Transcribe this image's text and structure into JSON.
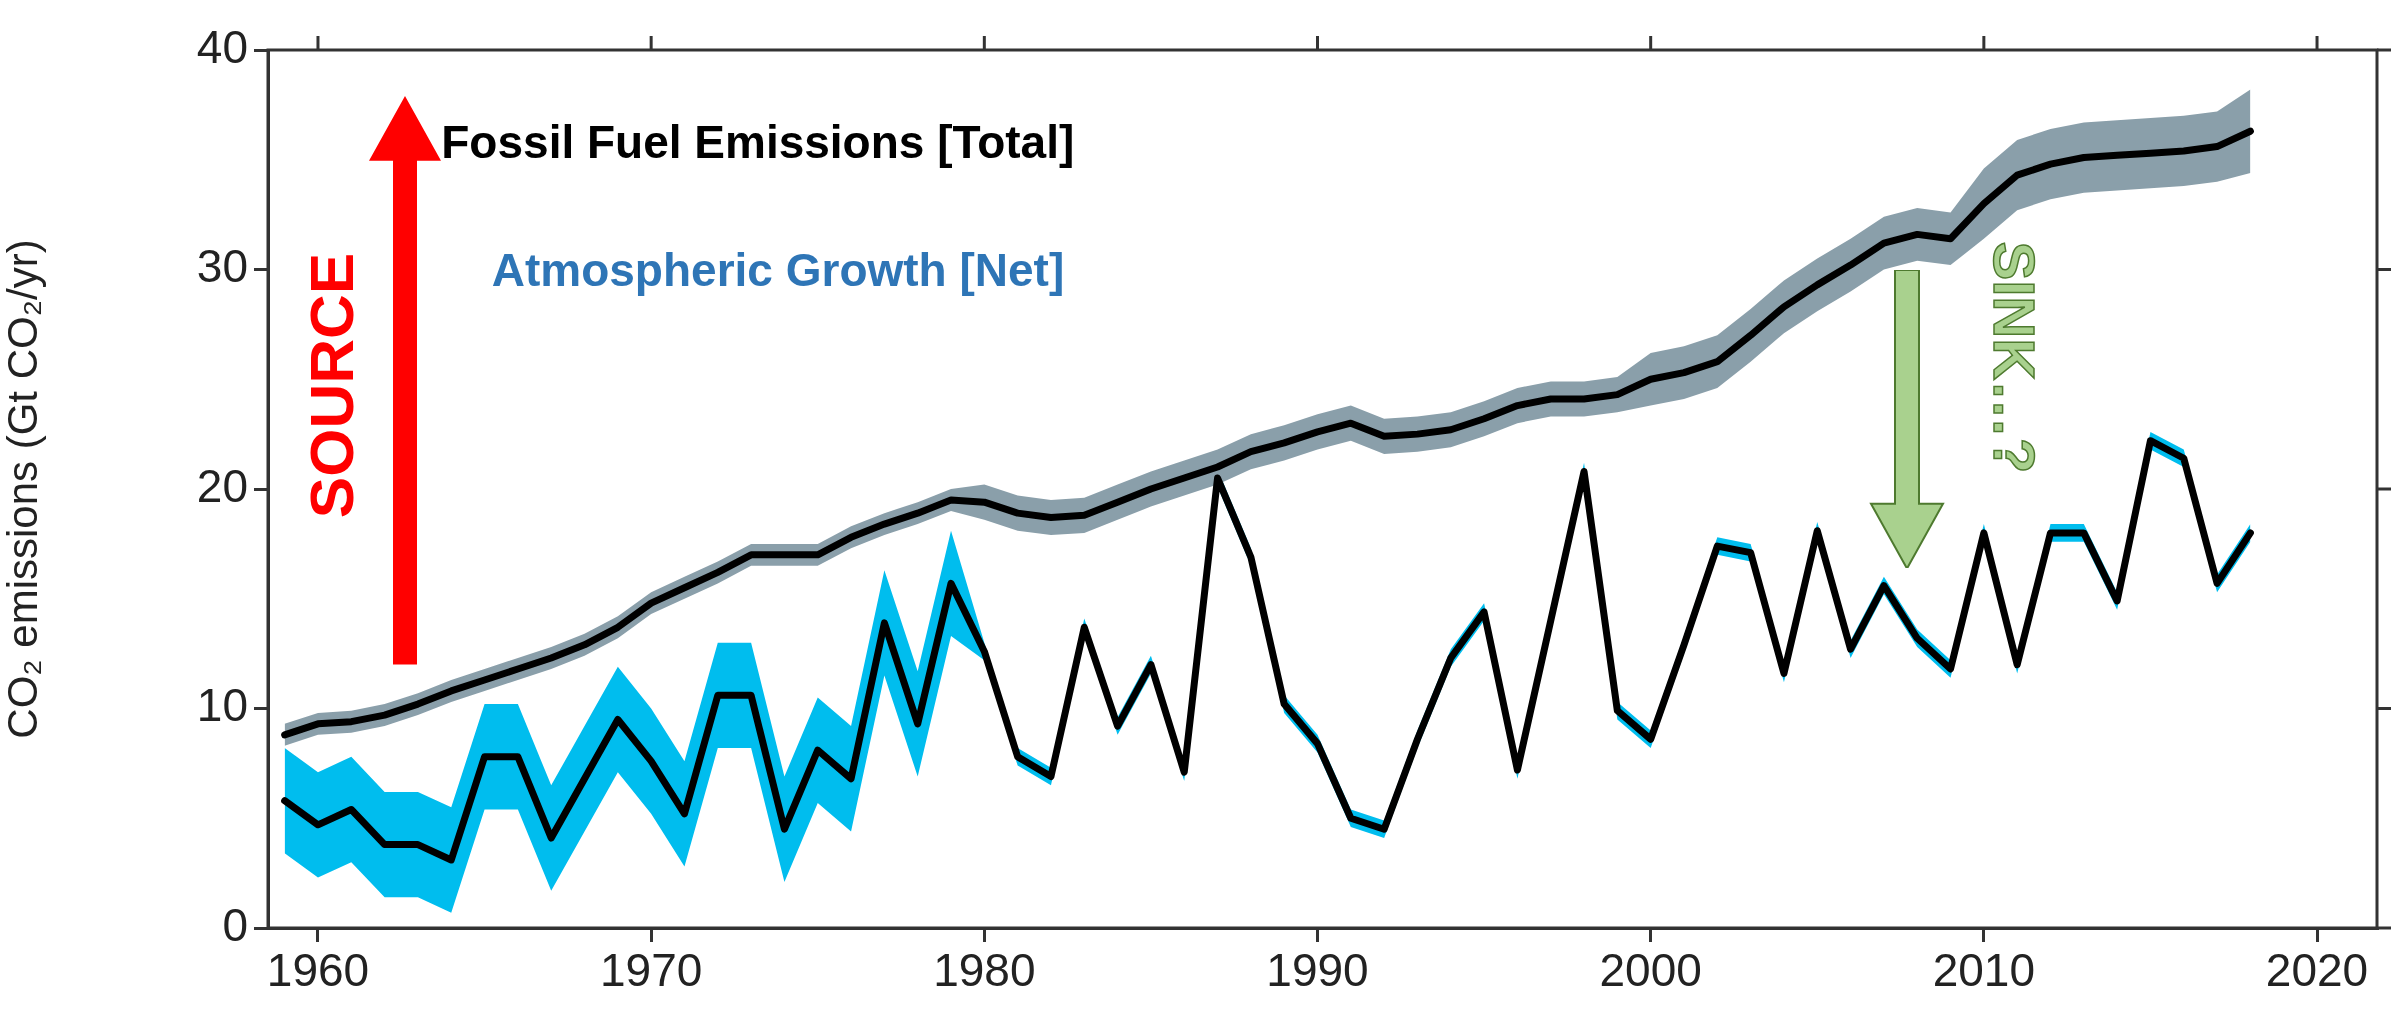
{
  "chart_data": {
    "type": "line",
    "ylabel": "CO₂ emissions (Gt CO₂/yr)",
    "x": [
      1959,
      1960,
      1961,
      1962,
      1963,
      1964,
      1965,
      1966,
      1967,
      1968,
      1969,
      1970,
      1971,
      1972,
      1973,
      1974,
      1975,
      1976,
      1977,
      1978,
      1979,
      1980,
      1981,
      1982,
      1983,
      1984,
      1985,
      1986,
      1987,
      1988,
      1989,
      1990,
      1991,
      1992,
      1993,
      1994,
      1995,
      1996,
      1997,
      1998,
      1999,
      2000,
      2001,
      2002,
      2003,
      2004,
      2005,
      2006,
      2007,
      2008,
      2009,
      2010,
      2011,
      2012,
      2013,
      2014,
      2015,
      2016,
      2017,
      2018
    ],
    "series": [
      {
        "color": "#000000",
        "values": [
          8.8,
          9.3,
          9.4,
          9.7,
          10.2,
          10.8,
          11.3,
          11.8,
          12.3,
          12.9,
          13.7,
          14.8,
          15.5,
          16.2,
          17.0,
          17.0,
          17.0,
          17.8,
          18.4,
          18.9,
          19.5,
          19.4,
          18.9,
          18.7,
          18.8,
          19.4,
          20.0,
          20.5,
          21.0,
          21.7,
          22.1,
          22.6,
          23.0,
          22.4,
          22.5,
          22.7,
          23.2,
          23.8,
          24.1,
          24.1,
          24.3,
          25.0,
          25.3,
          25.8,
          27.0,
          28.3,
          29.3,
          30.2,
          31.2,
          31.6,
          31.4,
          33.0,
          34.3,
          34.8,
          35.1,
          35.2,
          35.3,
          35.4,
          35.6,
          36.3
        ],
        "lower": [
          8.3,
          8.8,
          8.9,
          9.2,
          9.7,
          10.3,
          10.8,
          11.3,
          11.8,
          12.4,
          13.2,
          14.3,
          15.0,
          15.7,
          16.5,
          16.5,
          16.5,
          17.3,
          17.9,
          18.4,
          19.0,
          18.6,
          18.1,
          17.9,
          18.0,
          18.6,
          19.2,
          19.7,
          20.2,
          20.9,
          21.3,
          21.8,
          22.2,
          21.6,
          21.7,
          21.9,
          22.4,
          23.0,
          23.3,
          23.3,
          23.5,
          23.8,
          24.1,
          24.6,
          25.8,
          27.1,
          28.1,
          29.0,
          30.0,
          30.4,
          30.2,
          31.4,
          32.7,
          33.2,
          33.5,
          33.6,
          33.7,
          33.8,
          34.0,
          34.4
        ],
        "upper": [
          9.3,
          9.8,
          9.9,
          10.2,
          10.7,
          11.3,
          11.8,
          12.3,
          12.8,
          13.4,
          14.2,
          15.3,
          16.0,
          16.7,
          17.5,
          17.5,
          17.5,
          18.3,
          18.9,
          19.4,
          20.0,
          20.2,
          19.7,
          19.5,
          19.6,
          20.2,
          20.8,
          21.3,
          21.8,
          22.5,
          22.9,
          23.4,
          23.8,
          23.2,
          23.3,
          23.5,
          24.0,
          24.6,
          24.9,
          24.9,
          25.1,
          26.2,
          26.5,
          27.0,
          28.2,
          29.5,
          30.5,
          31.4,
          32.4,
          32.8,
          32.6,
          34.6,
          35.9,
          36.4,
          36.7,
          36.8,
          36.9,
          37.0,
          37.2,
          38.2
        ]
      },
      {
        "color": "#000000",
        "values": [
          5.8,
          4.7,
          5.4,
          3.8,
          3.8,
          3.1,
          7.8,
          7.8,
          4.1,
          6.8,
          9.5,
          7.6,
          5.2,
          10.6,
          10.6,
          4.5,
          8.1,
          6.8,
          13.9,
          9.3,
          15.7,
          12.6,
          7.8,
          6.9,
          13.7,
          9.2,
          12.0,
          7.1,
          20.5,
          16.9,
          10.2,
          8.4,
          5.0,
          4.5,
          8.6,
          12.3,
          14.4,
          7.2,
          14.0,
          20.8,
          9.9,
          8.6,
          12.9,
          17.4,
          17.1,
          11.6,
          18.1,
          12.7,
          15.6,
          13.2,
          11.8,
          18.0,
          12.0,
          18.0,
          18.0,
          14.9,
          22.2,
          21.4,
          15.7,
          18.0
        ],
        "lower": [
          3.4,
          2.3,
          3.0,
          1.4,
          1.4,
          0.7,
          5.4,
          5.4,
          1.7,
          4.4,
          7.1,
          5.2,
          2.8,
          8.2,
          8.2,
          2.1,
          5.7,
          4.4,
          11.5,
          6.9,
          13.3,
          12.2,
          7.4,
          6.5,
          13.3,
          8.8,
          11.6,
          6.7,
          20.1,
          16.5,
          9.8,
          8.0,
          4.6,
          4.1,
          8.2,
          11.9,
          14.0,
          6.8,
          13.6,
          20.4,
          9.5,
          8.2,
          12.5,
          17.0,
          16.7,
          11.2,
          17.7,
          12.3,
          15.2,
          12.8,
          11.4,
          17.6,
          11.6,
          17.6,
          17.6,
          14.5,
          21.8,
          21.0,
          15.3,
          17.6
        ],
        "upper": [
          8.2,
          7.1,
          7.8,
          6.2,
          6.2,
          5.5,
          10.2,
          10.2,
          6.5,
          9.2,
          11.9,
          10.0,
          7.6,
          13.0,
          13.0,
          6.9,
          10.5,
          9.2,
          16.3,
          11.7,
          18.1,
          13.0,
          8.2,
          7.3,
          14.1,
          9.6,
          12.4,
          7.5,
          20.9,
          17.3,
          10.6,
          8.8,
          5.4,
          4.9,
          9.0,
          12.7,
          14.8,
          7.6,
          14.4,
          21.2,
          10.3,
          9.0,
          13.3,
          17.8,
          17.5,
          12.0,
          18.5,
          13.1,
          16.0,
          13.6,
          12.2,
          18.4,
          12.4,
          18.4,
          18.4,
          15.3,
          22.6,
          21.8,
          16.1,
          18.4
        ]
      }
    ],
    "xlim": [
      1958.5,
      2021.8
    ],
    "xticks": [
      1960,
      1970,
      1980,
      1990,
      2000,
      2010,
      2020
    ],
    "ylim": [
      0,
      40
    ],
    "yticks": [
      0,
      10,
      20,
      30,
      40
    ],
    "grid": false,
    "marker": "none",
    "line_style": "solid",
    "annotations": [
      "Fossil Fuel Emissions [Total]",
      "Atmospheric Growth [Net]",
      "SOURCE",
      "SINK…?"
    ]
  }
}
